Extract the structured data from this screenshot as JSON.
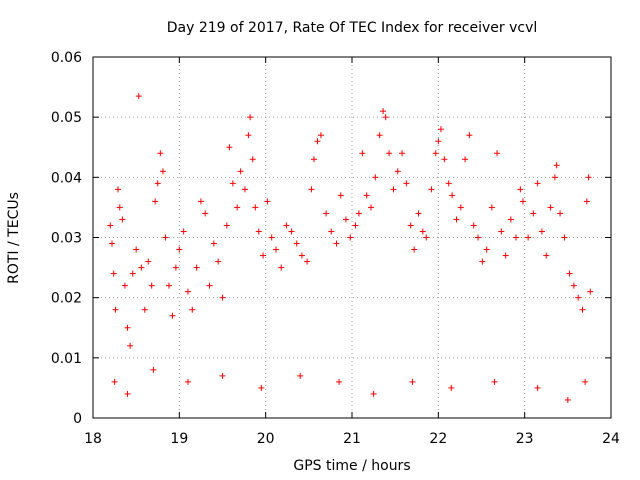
{
  "chart_data": {
    "type": "scatter",
    "title": "Day 219 of 2017, Rate Of TEC Index for receiver vcvl",
    "xlabel": "GPS time / hours",
    "ylabel": "ROTI / TECUs",
    "xlim": [
      18,
      24
    ],
    "ylim": [
      0,
      0.06
    ],
    "xticks": [
      18,
      19,
      20,
      21,
      22,
      23,
      24
    ],
    "xtick_labels": [
      "18",
      "19",
      "20",
      "21",
      "22",
      "23",
      "24"
    ],
    "yticks": [
      0,
      0.01,
      0.02,
      0.03,
      0.04,
      0.05,
      0.06
    ],
    "ytick_labels": [
      "0",
      "0.01",
      "0.02",
      "0.03",
      "0.04",
      "0.05",
      "0.06"
    ],
    "grid": true,
    "marker": "+",
    "color": "#ff0000",
    "series": [
      {
        "name": "ROTI",
        "points": [
          [
            18.2,
            0.032
          ],
          [
            18.22,
            0.029
          ],
          [
            18.24,
            0.024
          ],
          [
            18.26,
            0.018
          ],
          [
            18.29,
            0.038
          ],
          [
            18.31,
            0.035
          ],
          [
            18.34,
            0.033
          ],
          [
            18.37,
            0.022
          ],
          [
            18.4,
            0.015
          ],
          [
            18.43,
            0.012
          ],
          [
            18.46,
            0.024
          ],
          [
            18.5,
            0.028
          ],
          [
            18.53,
            0.0535
          ],
          [
            18.56,
            0.025
          ],
          [
            18.6,
            0.018
          ],
          [
            18.64,
            0.026
          ],
          [
            18.68,
            0.022
          ],
          [
            18.72,
            0.036
          ],
          [
            18.75,
            0.039
          ],
          [
            18.78,
            0.044
          ],
          [
            18.81,
            0.041
          ],
          [
            18.84,
            0.03
          ],
          [
            18.88,
            0.022
          ],
          [
            18.92,
            0.017
          ],
          [
            18.96,
            0.025
          ],
          [
            19.0,
            0.028
          ],
          [
            19.05,
            0.031
          ],
          [
            19.1,
            0.021
          ],
          [
            19.15,
            0.018
          ],
          [
            19.2,
            0.025
          ],
          [
            19.25,
            0.036
          ],
          [
            19.3,
            0.034
          ],
          [
            19.35,
            0.022
          ],
          [
            19.4,
            0.029
          ],
          [
            19.45,
            0.026
          ],
          [
            19.5,
            0.02
          ],
          [
            19.55,
            0.032
          ],
          [
            19.58,
            0.045
          ],
          [
            19.62,
            0.039
          ],
          [
            19.67,
            0.035
          ],
          [
            19.71,
            0.041
          ],
          [
            19.76,
            0.038
          ],
          [
            19.8,
            0.047
          ],
          [
            19.82,
            0.05
          ],
          [
            19.85,
            0.043
          ],
          [
            19.88,
            0.035
          ],
          [
            19.92,
            0.031
          ],
          [
            19.97,
            0.027
          ],
          [
            20.02,
            0.036
          ],
          [
            20.07,
            0.03
          ],
          [
            20.12,
            0.028
          ],
          [
            20.18,
            0.025
          ],
          [
            20.24,
            0.032
          ],
          [
            20.3,
            0.031
          ],
          [
            20.36,
            0.029
          ],
          [
            20.42,
            0.027
          ],
          [
            20.48,
            0.026
          ],
          [
            20.53,
            0.038
          ],
          [
            20.56,
            0.043
          ],
          [
            20.6,
            0.046
          ],
          [
            20.64,
            0.047
          ],
          [
            20.7,
            0.034
          ],
          [
            20.76,
            0.031
          ],
          [
            20.82,
            0.029
          ],
          [
            20.87,
            0.037
          ],
          [
            20.93,
            0.033
          ],
          [
            20.98,
            0.03
          ],
          [
            21.04,
            0.032
          ],
          [
            21.08,
            0.034
          ],
          [
            21.12,
            0.044
          ],
          [
            21.17,
            0.037
          ],
          [
            21.22,
            0.035
          ],
          [
            21.27,
            0.04
          ],
          [
            21.32,
            0.047
          ],
          [
            21.36,
            0.051
          ],
          [
            21.39,
            0.05
          ],
          [
            21.43,
            0.044
          ],
          [
            21.48,
            0.038
          ],
          [
            21.53,
            0.041
          ],
          [
            21.58,
            0.044
          ],
          [
            21.63,
            0.039
          ],
          [
            21.68,
            0.032
          ],
          [
            21.72,
            0.028
          ],
          [
            21.77,
            0.034
          ],
          [
            21.82,
            0.031
          ],
          [
            21.86,
            0.03
          ],
          [
            21.92,
            0.038
          ],
          [
            21.97,
            0.044
          ],
          [
            22.0,
            0.046
          ],
          [
            22.03,
            0.048
          ],
          [
            22.07,
            0.043
          ],
          [
            22.12,
            0.039
          ],
          [
            22.16,
            0.037
          ],
          [
            22.21,
            0.033
          ],
          [
            22.26,
            0.035
          ],
          [
            22.31,
            0.043
          ],
          [
            22.36,
            0.047
          ],
          [
            22.41,
            0.032
          ],
          [
            22.46,
            0.03
          ],
          [
            22.51,
            0.026
          ],
          [
            22.56,
            0.028
          ],
          [
            22.62,
            0.035
          ],
          [
            22.68,
            0.044
          ],
          [
            22.73,
            0.031
          ],
          [
            22.78,
            0.027
          ],
          [
            22.84,
            0.033
          ],
          [
            22.9,
            0.03
          ],
          [
            22.95,
            0.038
          ],
          [
            22.98,
            0.036
          ],
          [
            23.04,
            0.03
          ],
          [
            23.1,
            0.034
          ],
          [
            23.15,
            0.039
          ],
          [
            23.2,
            0.031
          ],
          [
            23.25,
            0.027
          ],
          [
            23.3,
            0.035
          ],
          [
            23.35,
            0.04
          ],
          [
            23.37,
            0.042
          ],
          [
            23.41,
            0.034
          ],
          [
            23.46,
            0.03
          ],
          [
            23.52,
            0.024
          ],
          [
            23.57,
            0.022
          ],
          [
            23.62,
            0.02
          ],
          [
            23.67,
            0.018
          ],
          [
            23.72,
            0.036
          ],
          [
            23.74,
            0.04
          ],
          [
            23.76,
            0.021
          ],
          [
            18.25,
            0.006
          ],
          [
            18.4,
            0.004
          ],
          [
            18.7,
            0.008
          ],
          [
            19.1,
            0.006
          ],
          [
            19.5,
            0.007
          ],
          [
            19.95,
            0.005
          ],
          [
            20.4,
            0.007
          ],
          [
            20.85,
            0.006
          ],
          [
            21.25,
            0.004
          ],
          [
            21.7,
            0.006
          ],
          [
            22.15,
            0.005
          ],
          [
            22.65,
            0.006
          ],
          [
            23.15,
            0.005
          ],
          [
            23.5,
            0.003
          ],
          [
            23.7,
            0.006
          ]
        ]
      }
    ]
  }
}
